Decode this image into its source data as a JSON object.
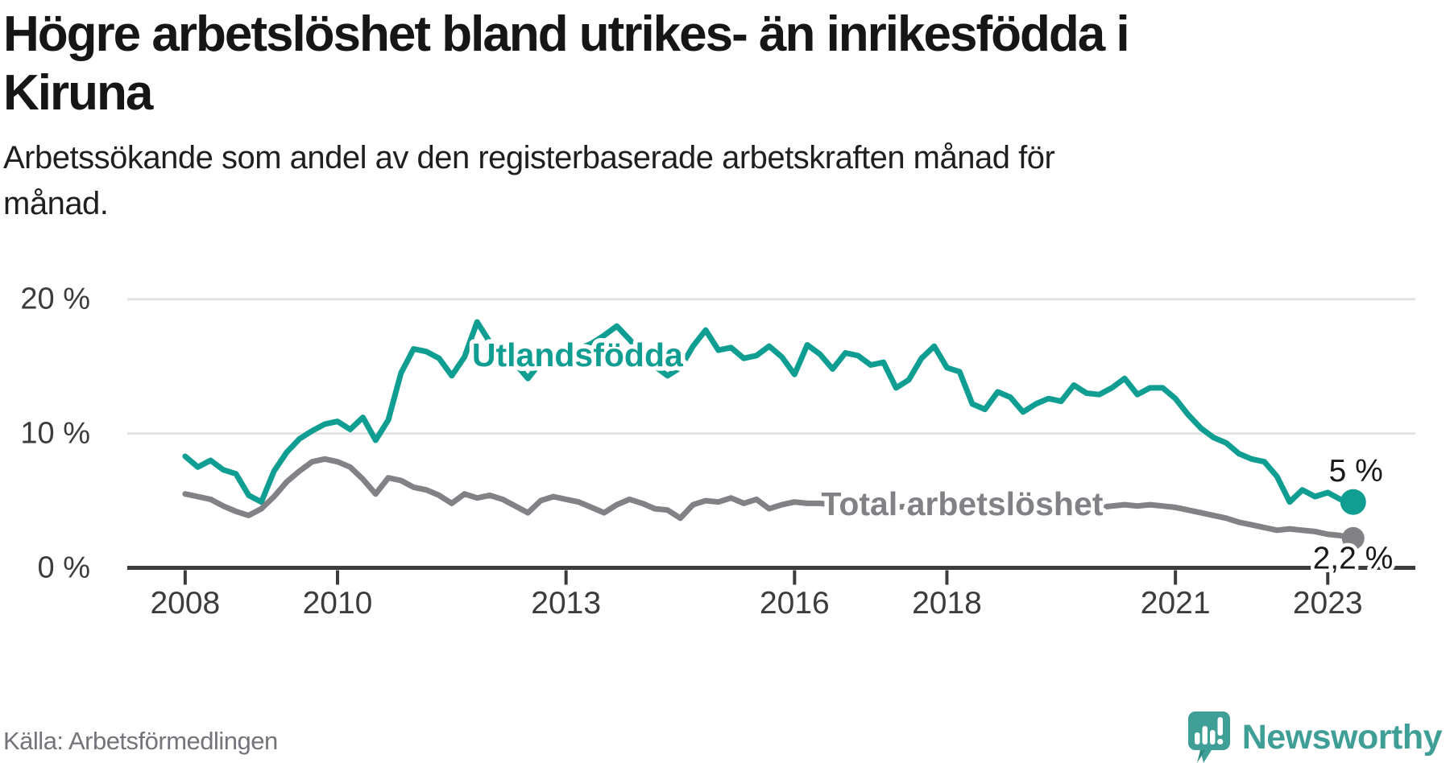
{
  "header": {
    "title_line1": "Högre arbetslöshet bland utrikes- än inrikesfödda i",
    "title_line2": "Kiruna",
    "subtitle_line1": "Arbetssökande som andel av den registerbaserade arbetskraften månad för",
    "subtitle_line2": "månad."
  },
  "footer": {
    "source": "Källa: Arbetsförmedlingen",
    "brand": "Newsworthy"
  },
  "colors": {
    "accent_teal": "#0f9e91",
    "line_gray": "#818186",
    "axis_dark": "#3c3c3c",
    "gridline": "#e3e3e3",
    "tick_text": "#3c3c3c",
    "annotation_text": "#1a1a1a",
    "brand_teal": "#3f9f97"
  },
  "chart_data": {
    "type": "line",
    "title": "Högre arbetslöshet bland utrikes- än inrikesfödda i Kiruna",
    "subtitle": "Arbetssökande som andel av den registerbaserade arbetskraften månad för månad.",
    "unit": "%",
    "grid": "horizontal",
    "legend_position": "inline-labels",
    "xlim": [
      2007.24,
      2024.15
    ],
    "ylim": [
      0,
      22.5
    ],
    "x_start": 2008,
    "x_step_years": 0.1666667,
    "yticks": [
      {
        "value": 0,
        "label": "0 %"
      },
      {
        "value": 10,
        "label": "10 %"
      },
      {
        "value": 20,
        "label": "20 %"
      }
    ],
    "xticks": [
      {
        "value": 2008,
        "label": "2008"
      },
      {
        "value": 2010,
        "label": "2010"
      },
      {
        "value": 2013,
        "label": "2013"
      },
      {
        "value": 2016,
        "label": "2016"
      },
      {
        "value": 2018,
        "label": "2018"
      },
      {
        "value": 2021,
        "label": "2021"
      },
      {
        "value": 2023,
        "label": "2023"
      }
    ],
    "series": [
      {
        "name": "Utlandsfödda",
        "color": "#0f9e91",
        "label_pos": {
          "x": 2013.15,
          "y": 15.85
        },
        "end_label": "5 %",
        "end_label_pos": {
          "x": 2023.37,
          "y": 7.2
        },
        "end_dot_radius": 16,
        "values": [
          8.3,
          7.5,
          8.0,
          7.3,
          7.0,
          5.4,
          4.9,
          7.2,
          8.6,
          9.6,
          10.2,
          10.7,
          10.9,
          10.3,
          11.2,
          9.5,
          11.0,
          14.5,
          16.3,
          16.1,
          15.6,
          14.3,
          15.7,
          18.3,
          16.8,
          16.0,
          15.2,
          14.1,
          15.3,
          15.8,
          16.0,
          16.3,
          16.7,
          17.3,
          18.0,
          17.0,
          15.9,
          15.0,
          14.3,
          14.9,
          16.5,
          17.7,
          16.2,
          16.4,
          15.6,
          15.8,
          16.5,
          15.7,
          14.4,
          16.6,
          15.9,
          14.8,
          16.0,
          15.8,
          15.1,
          15.3,
          13.4,
          14.0,
          15.6,
          16.5,
          14.9,
          14.6,
          12.2,
          11.8,
          13.1,
          12.7,
          11.6,
          12.2,
          12.6,
          12.4,
          13.6,
          13.0,
          12.9,
          13.4,
          14.1,
          12.9,
          13.4,
          13.4,
          12.6,
          11.4,
          10.4,
          9.7,
          9.3,
          8.5,
          8.1,
          7.9,
          6.8,
          4.9,
          5.8,
          5.3,
          5.6,
          5.1,
          4.9
        ]
      },
      {
        "name": "Total arbetslöshet",
        "color": "#818186",
        "label_pos": {
          "x": 2018.2,
          "y": 4.75
        },
        "end_label": "2,2 %",
        "end_label_pos": {
          "x": 2023.33,
          "y": 0.7
        },
        "end_dot_radius": 14,
        "values": [
          5.5,
          5.3,
          5.1,
          4.6,
          4.2,
          3.9,
          4.4,
          5.3,
          6.4,
          7.2,
          7.9,
          8.1,
          7.9,
          7.5,
          6.6,
          5.5,
          6.7,
          6.5,
          6.0,
          5.8,
          5.4,
          4.8,
          5.5,
          5.2,
          5.4,
          5.1,
          4.6,
          4.1,
          5.0,
          5.3,
          5.1,
          4.9,
          4.5,
          4.1,
          4.7,
          5.1,
          4.8,
          4.4,
          4.3,
          3.7,
          4.7,
          5.0,
          4.9,
          5.2,
          4.8,
          5.1,
          4.4,
          4.7,
          4.9,
          4.8,
          4.8,
          4.7,
          4.8,
          4.7,
          4.6,
          4.7,
          4.5,
          4.6,
          4.7,
          4.8,
          4.7,
          4.6,
          4.5,
          4.6,
          4.5,
          4.4,
          4.3,
          4.4,
          4.5,
          4.4,
          4.5,
          4.6,
          4.5,
          4.6,
          4.7,
          4.6,
          4.7,
          4.6,
          4.5,
          4.3,
          4.1,
          3.9,
          3.7,
          3.4,
          3.2,
          3.0,
          2.8,
          2.9,
          2.8,
          2.7,
          2.5,
          2.4,
          2.2
        ]
      }
    ]
  }
}
